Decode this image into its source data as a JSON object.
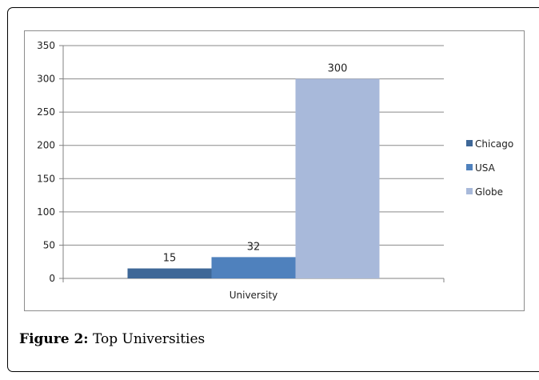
{
  "chart_data": {
    "type": "bar",
    "categories": [
      "University"
    ],
    "series": [
      {
        "name": "Chicago",
        "values": [
          15
        ],
        "color": "#3e6797"
      },
      {
        "name": "USA",
        "values": [
          32
        ],
        "color": "#4f81bd"
      },
      {
        "name": "Globe",
        "values": [
          300
        ],
        "color": "#a8b9da"
      }
    ],
    "title": "",
    "xlabel": "",
    "ylabel": "",
    "ylim": [
      0,
      350
    ],
    "yticks": [
      0,
      50,
      100,
      150,
      200,
      250,
      300,
      350
    ],
    "grid": true,
    "legend_position": "right"
  },
  "caption": {
    "label": "Figure 2:",
    "text": "Top Universities"
  }
}
